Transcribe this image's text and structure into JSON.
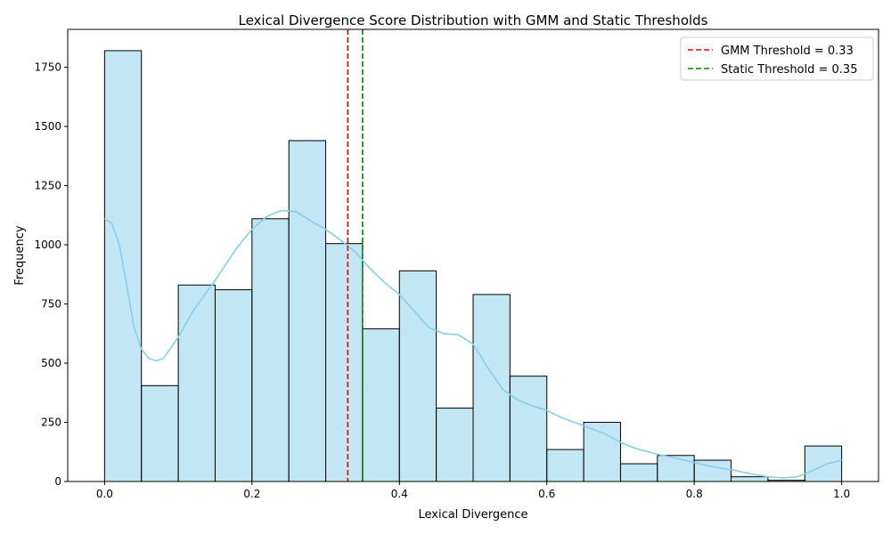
{
  "chart_data": {
    "type": "bar",
    "title": "Lexical Divergence Score Distribution with GMM and Static Thresholds",
    "xlabel": "Lexical Divergence",
    "ylabel": "Frequency",
    "xlim": [
      -0.05,
      1.05
    ],
    "ylim": [
      0,
      1910
    ],
    "x_ticks": [
      0.0,
      0.2,
      0.4,
      0.6,
      0.8,
      1.0
    ],
    "x_tick_labels": [
      "0.0",
      "0.2",
      "0.4",
      "0.6",
      "0.8",
      "1.0"
    ],
    "y_ticks": [
      0,
      250,
      500,
      750,
      1000,
      1250,
      1500,
      1750
    ],
    "y_tick_labels": [
      "0",
      "250",
      "500",
      "750",
      "1000",
      "1250",
      "1500",
      "1750"
    ],
    "bin_edges": [
      0.0,
      0.05,
      0.1,
      0.15,
      0.2,
      0.25,
      0.3,
      0.35,
      0.4,
      0.45,
      0.5,
      0.55,
      0.6,
      0.65,
      0.7,
      0.75,
      0.8,
      0.85,
      0.9,
      0.95,
      1.0
    ],
    "values": [
      1820,
      405,
      830,
      810,
      1110,
      1440,
      1005,
      645,
      890,
      310,
      790,
      445,
      135,
      250,
      75,
      110,
      90,
      20,
      5,
      150
    ],
    "bar_color": "#87ceeb",
    "bar_edge_color": "#000000",
    "kde": {
      "color": "#87ceeb",
      "x": [
        0.0,
        0.01,
        0.02,
        0.03,
        0.04,
        0.05,
        0.06,
        0.07,
        0.08,
        0.1,
        0.12,
        0.15,
        0.18,
        0.2,
        0.22,
        0.24,
        0.26,
        0.28,
        0.3,
        0.32,
        0.34,
        0.36,
        0.38,
        0.4,
        0.42,
        0.44,
        0.46,
        0.48,
        0.5,
        0.52,
        0.54,
        0.56,
        0.58,
        0.6,
        0.62,
        0.65,
        0.68,
        0.7,
        0.72,
        0.75,
        0.78,
        0.8,
        0.82,
        0.85,
        0.88,
        0.9,
        0.92,
        0.94,
        0.96,
        0.98,
        1.0
      ],
      "y": [
        1110,
        1090,
        1000,
        830,
        650,
        560,
        520,
        510,
        520,
        610,
        720,
        850,
        990,
        1065,
        1120,
        1145,
        1140,
        1100,
        1065,
        1020,
        970,
        900,
        840,
        790,
        720,
        650,
        625,
        620,
        580,
        480,
        390,
        345,
        320,
        300,
        270,
        235,
        200,
        165,
        140,
        115,
        95,
        80,
        65,
        50,
        30,
        20,
        15,
        20,
        45,
        75,
        90
      ]
    },
    "thresholds": [
      {
        "label": "GMM Threshold = 0.33",
        "x": 0.33,
        "color": "#dd0000"
      },
      {
        "label": "Static Threshold = 0.35",
        "x": 0.35,
        "color": "#008000"
      }
    ],
    "legend_position": "top-right",
    "grid": false
  }
}
